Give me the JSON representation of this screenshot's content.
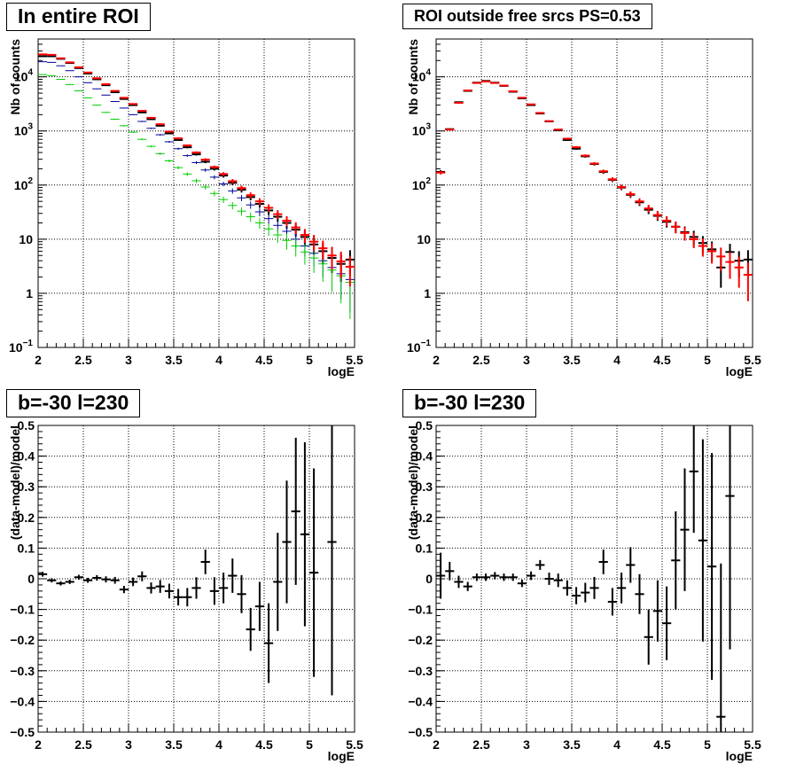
{
  "colors": {
    "data": "#000000",
    "model_total": "#ff0000",
    "component_blue": "#000099",
    "component_green": "#00cc00",
    "grid": "#000000"
  },
  "chart_data": [
    {
      "type": "scatter",
      "title": "In entire ROI",
      "xlabel": "logE",
      "ylabel": "Nb of counts",
      "xlim": [
        2,
        5.5
      ],
      "ylim": [
        0.1,
        50000
      ],
      "yscale": "log",
      "grid": true,
      "x_ticks": [
        "2",
        "2.5",
        "3",
        "3.5",
        "4",
        "4.5",
        "5",
        "5.5"
      ],
      "y_ticks": [
        {
          "base": "10",
          "exp": "−1",
          "value": 0.1
        },
        {
          "base": "1",
          "exp": "",
          "value": 1
        },
        {
          "base": "10",
          "exp": "",
          "value": 10
        },
        {
          "base": "10",
          "exp": "2",
          "value": 100
        },
        {
          "base": "10",
          "exp": "3",
          "value": 1000
        },
        {
          "base": "10",
          "exp": "4",
          "value": 10000
        }
      ],
      "x": [
        2.05,
        2.15,
        2.25,
        2.35,
        2.45,
        2.55,
        2.65,
        2.75,
        2.85,
        2.95,
        3.05,
        3.15,
        3.25,
        3.35,
        3.45,
        3.55,
        3.65,
        3.75,
        3.85,
        3.95,
        4.05,
        4.15,
        4.25,
        4.35,
        4.45,
        4.55,
        4.65,
        4.75,
        4.85,
        4.95,
        5.05,
        5.15,
        5.25,
        5.35,
        5.45
      ],
      "series": [
        {
          "color": "#000000",
          "values": [
            24000,
            24000,
            21500,
            18000,
            14500,
            11500,
            9000,
            7000,
            5200,
            3900,
            3000,
            2200,
            1650,
            1250,
            900,
            680,
            500,
            370,
            270,
            200,
            150,
            110,
            82,
            60,
            45,
            34,
            26,
            20,
            15,
            11,
            8,
            6,
            4.5,
            3.5,
            4.2
          ],
          "err_lw": 2
        },
        {
          "color": "#000099",
          "values": [
            19000,
            18500,
            16000,
            13000,
            10000,
            7800,
            6000,
            4600,
            3500,
            2650,
            2000,
            1500,
            1120,
            850,
            630,
            470,
            350,
            260,
            190,
            140,
            105,
            78,
            58,
            43,
            32,
            24,
            18,
            14,
            10,
            7.5,
            5.5,
            4,
            3,
            2.3,
            1.8
          ],
          "err_lw": 1
        },
        {
          "color": "#00cc00",
          "values": [
            11000,
            10500,
            9000,
            7200,
            5500,
            4100,
            3000,
            2200,
            1650,
            1250,
            950,
            700,
            520,
            380,
            280,
            210,
            160,
            120,
            92,
            70,
            54,
            42,
            33,
            26,
            20,
            15.5,
            12,
            9.5,
            7.5,
            5.8,
            4.5,
            3.5,
            2.7,
            2.1,
            1.6
          ],
          "err_lw": 1
        },
        {
          "color": "#ff0000",
          "values": [
            26000,
            25500,
            22000,
            18500,
            15000,
            12000,
            9400,
            7300,
            5500,
            4100,
            3150,
            2350,
            1750,
            1330,
            970,
            730,
            540,
            400,
            295,
            215,
            160,
            118,
            88,
            65,
            50,
            38,
            29,
            22,
            16.5,
            12,
            9,
            6.8,
            5,
            3.9,
            3.1
          ],
          "err_lw": 2
        }
      ]
    },
    {
      "type": "scatter",
      "title": "ROI outside free srcs PS=0.53",
      "xlabel": "logE",
      "ylabel": "Nb of counts",
      "xlim": [
        2,
        5.5
      ],
      "ylim": [
        0.1,
        50000
      ],
      "yscale": "log",
      "grid": true,
      "x_ticks": [
        "2",
        "2.5",
        "3",
        "3.5",
        "4",
        "4.5",
        "5",
        "5.5"
      ],
      "y_ticks": [
        {
          "base": "10",
          "exp": "−1",
          "value": 0.1
        },
        {
          "base": "1",
          "exp": "",
          "value": 1
        },
        {
          "base": "10",
          "exp": "",
          "value": 10
        },
        {
          "base": "10",
          "exp": "2",
          "value": 100
        },
        {
          "base": "10",
          "exp": "3",
          "value": 1000
        },
        {
          "base": "10",
          "exp": "4",
          "value": 10000
        }
      ],
      "x": [
        2.05,
        2.15,
        2.25,
        2.35,
        2.45,
        2.55,
        2.65,
        2.75,
        2.85,
        2.95,
        3.05,
        3.15,
        3.25,
        3.35,
        3.45,
        3.55,
        3.65,
        3.75,
        3.85,
        3.95,
        4.05,
        4.15,
        4.25,
        4.35,
        4.45,
        4.55,
        4.65,
        4.75,
        4.85,
        4.95,
        5.05,
        5.15,
        5.25,
        5.35,
        5.45
      ],
      "series": [
        {
          "color": "#000000",
          "values": [
            175,
            1080,
            3400,
            5500,
            7800,
            8400,
            7800,
            6800,
            5300,
            4000,
            3000,
            2100,
            1500,
            1030,
            680,
            470,
            340,
            245,
            175,
            125,
            90,
            66,
            48,
            35,
            27,
            21,
            17,
            13.5,
            11,
            8.5,
            6.5,
            3,
            5.8,
            4,
            4.2
          ],
          "err_lw": 2
        },
        {
          "color": "#ff0000",
          "values": [
            170,
            1060,
            3300,
            5600,
            7700,
            8200,
            7700,
            6900,
            5400,
            4100,
            3100,
            2150,
            1520,
            1060,
            720,
            500,
            350,
            250,
            180,
            128,
            92,
            68,
            50,
            37,
            28,
            22,
            17,
            13,
            10,
            7.5,
            6,
            4.8,
            3.8,
            3,
            2.2
          ],
          "err_lw": 2
        }
      ]
    },
    {
      "type": "scatter",
      "title": "b=-30 l=230",
      "xlabel": "logE",
      "ylabel": "(data-model)/model",
      "xlim": [
        2,
        5.5
      ],
      "ylim": [
        -0.5,
        0.5
      ],
      "grid": true,
      "x_ticks": [
        "2",
        "2.5",
        "3",
        "3.5",
        "4",
        "4.5",
        "5",
        "5.5"
      ],
      "y_ticks": [
        "−0.5",
        "−0.4",
        "−0.3",
        "−0.2",
        "−0.1",
        "0",
        "0.1",
        "0.2",
        "0.3",
        "0.4",
        "0.5"
      ],
      "x": [
        2.05,
        2.15,
        2.25,
        2.35,
        2.45,
        2.55,
        2.65,
        2.75,
        2.85,
        2.95,
        3.05,
        3.15,
        3.25,
        3.35,
        3.45,
        3.55,
        3.65,
        3.75,
        3.85,
        3.95,
        4.05,
        4.15,
        4.25,
        4.35,
        4.45,
        4.55,
        4.65,
        4.75,
        4.85,
        4.95,
        5.05,
        5.25
      ],
      "series": [
        {
          "color": "#000000",
          "values": [
            0.015,
            -0.005,
            -0.015,
            -0.01,
            0.005,
            -0.005,
            0.003,
            -0.002,
            -0.005,
            -0.035,
            -0.01,
            0.008,
            -0.03,
            -0.025,
            -0.04,
            -0.06,
            -0.06,
            -0.03,
            0.055,
            -0.04,
            -0.03,
            0.01,
            -0.05,
            -0.165,
            -0.09,
            -0.21,
            -0.01,
            0.12,
            0.22,
            0.145,
            0.02,
            0.12
          ],
          "errors": [
            0.008,
            0.007,
            0.007,
            0.007,
            0.008,
            0.008,
            0.009,
            0.01,
            0.011,
            0.012,
            0.014,
            0.016,
            0.018,
            0.021,
            0.024,
            0.027,
            0.03,
            0.035,
            0.04,
            0.045,
            0.05,
            0.056,
            0.062,
            0.07,
            0.08,
            0.13,
            0.16,
            0.2,
            0.24,
            0.3,
            0.34,
            0.5
          ]
        }
      ]
    },
    {
      "type": "scatter",
      "title": "b=-30 l=230",
      "xlabel": "logE",
      "ylabel": "(data-model)/model",
      "xlim": [
        2,
        5.5
      ],
      "ylim": [
        -0.5,
        0.5
      ],
      "grid": true,
      "x_ticks": [
        "2",
        "2.5",
        "3",
        "3.5",
        "4",
        "4.5",
        "5",
        "5.5"
      ],
      "y_ticks": [
        "−0.5",
        "−0.4",
        "−0.3",
        "−0.2",
        "−0.1",
        "0",
        "0.1",
        "0.2",
        "0.3",
        "0.4",
        "0.5"
      ],
      "x": [
        2.05,
        2.15,
        2.25,
        2.35,
        2.45,
        2.55,
        2.65,
        2.75,
        2.85,
        2.95,
        3.05,
        3.15,
        3.25,
        3.35,
        3.45,
        3.55,
        3.65,
        3.75,
        3.85,
        3.95,
        4.05,
        4.15,
        4.25,
        4.35,
        4.45,
        4.55,
        4.65,
        4.75,
        4.85,
        4.95,
        5.05,
        5.15,
        5.25
      ],
      "series": [
        {
          "color": "#000000",
          "values": [
            0.01,
            0.025,
            -0.01,
            -0.025,
            0.005,
            0.005,
            0.01,
            0.005,
            0.005,
            -0.015,
            0.01,
            0.045,
            0.0,
            -0.005,
            -0.03,
            -0.055,
            -0.045,
            -0.03,
            0.055,
            -0.075,
            -0.03,
            0.045,
            -0.05,
            -0.19,
            -0.105,
            -0.145,
            0.06,
            0.16,
            0.35,
            0.125,
            0.04,
            -0.45,
            0.27
          ],
          "errors": [
            0.075,
            0.03,
            0.02,
            0.015,
            0.012,
            0.012,
            0.012,
            0.012,
            0.012,
            0.012,
            0.014,
            0.016,
            0.02,
            0.022,
            0.025,
            0.028,
            0.032,
            0.036,
            0.04,
            0.045,
            0.05,
            0.058,
            0.065,
            0.09,
            0.1,
            0.12,
            0.16,
            0.2,
            0.2,
            0.33,
            0.37,
            0.5,
            0.5
          ]
        }
      ]
    }
  ]
}
